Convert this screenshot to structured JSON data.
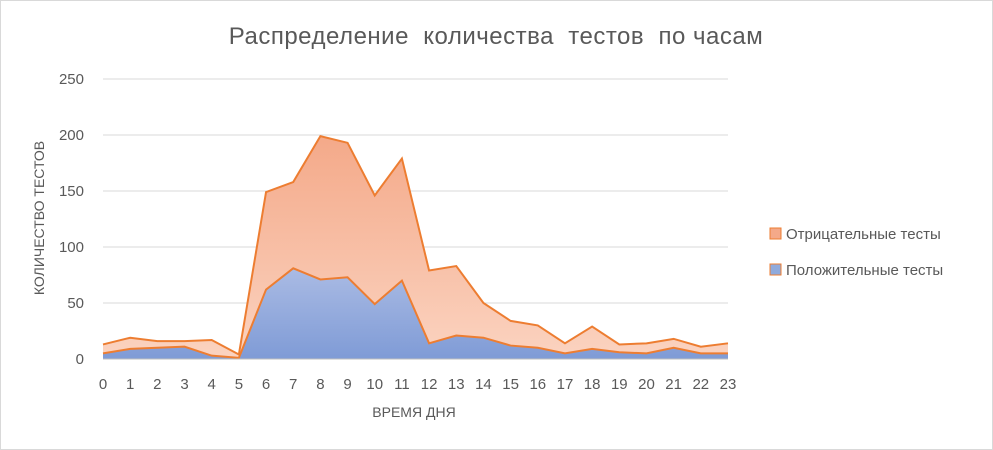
{
  "chart_data": {
    "type": "area",
    "stacked": true,
    "title": "Распределение  количества  тестов  по часам",
    "xlabel": "ВРЕМЯ ДНЯ",
    "ylabel": "КОЛИЧЕСТВО ТЕСТОВ",
    "categories": [
      "0",
      "1",
      "2",
      "3",
      "4",
      "5",
      "6",
      "7",
      "8",
      "9",
      "10",
      "11",
      "12",
      "13",
      "14",
      "15",
      "16",
      "17",
      "18",
      "19",
      "20",
      "21",
      "22",
      "23"
    ],
    "ylim": [
      0,
      250
    ],
    "yticks": [
      "0",
      "50",
      "100",
      "150",
      "200",
      "250"
    ],
    "grid": true,
    "legend_position": "right",
    "series": [
      {
        "name": "Положительные тесты",
        "color": "#8faadc",
        "line_color": "#ed7d31",
        "values": [
          5,
          9,
          10,
          11,
          3,
          1,
          62,
          81,
          71,
          73,
          49,
          70,
          14,
          21,
          19,
          12,
          10,
          5,
          9,
          6,
          5,
          10,
          5,
          5
        ]
      },
      {
        "name": "Отрицательные тесты",
        "color": "#f4b183",
        "line_color": "#ed7d31",
        "values": [
          8,
          10,
          6,
          5,
          14,
          3,
          87,
          77,
          128,
          120,
          97,
          109,
          65,
          62,
          31,
          22,
          20,
          9,
          20,
          7,
          9,
          8,
          6,
          9
        ]
      }
    ]
  }
}
